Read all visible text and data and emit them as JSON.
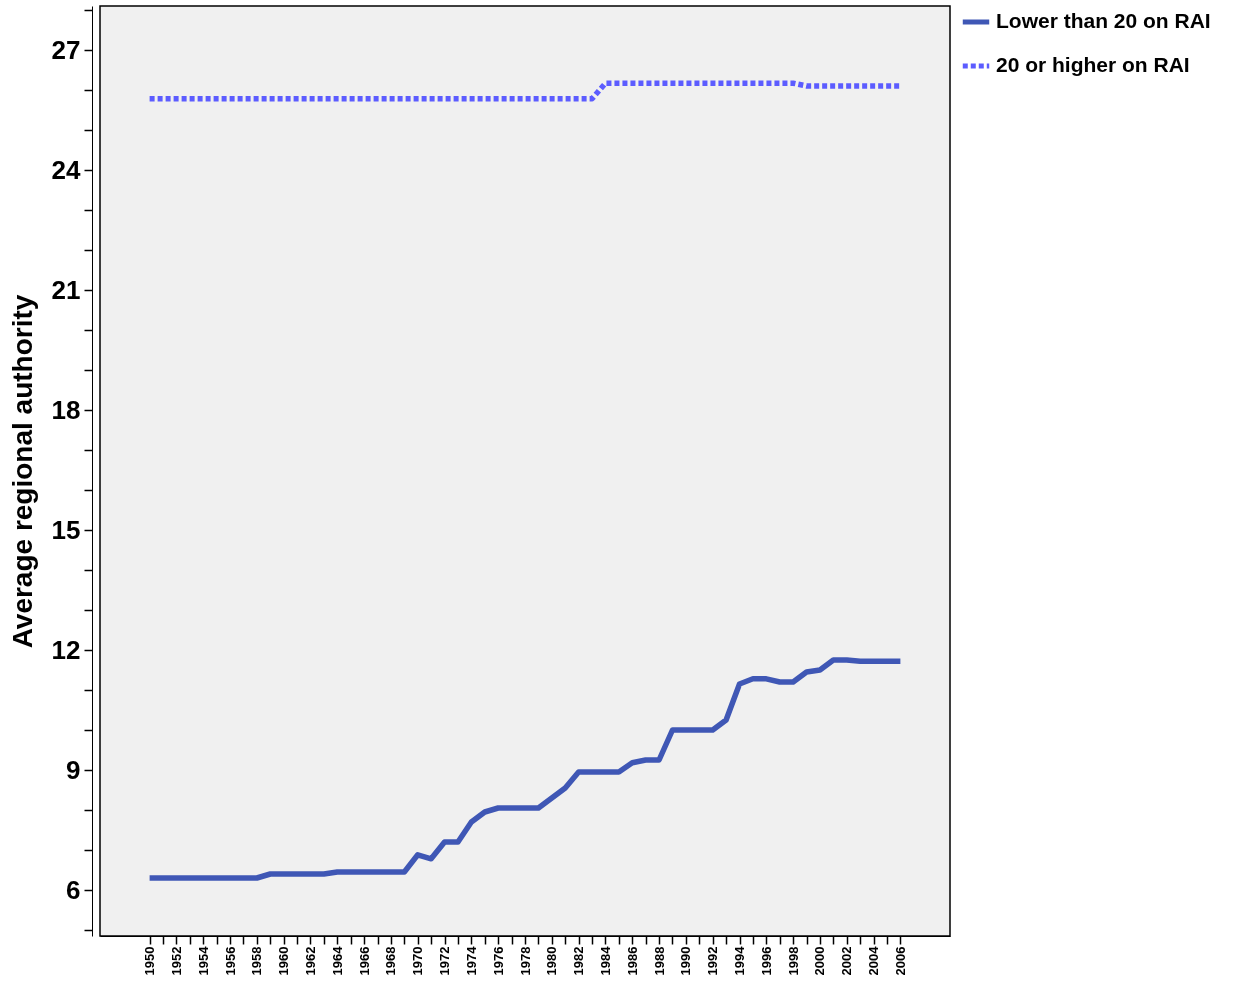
{
  "chart_data": {
    "type": "line",
    "ylabel": "Average regional authority",
    "x": [
      1950,
      1951,
      1952,
      1953,
      1954,
      1955,
      1956,
      1957,
      1958,
      1959,
      1960,
      1961,
      1962,
      1963,
      1964,
      1965,
      1966,
      1967,
      1968,
      1969,
      1970,
      1971,
      1972,
      1973,
      1974,
      1975,
      1976,
      1977,
      1978,
      1979,
      1980,
      1981,
      1982,
      1983,
      1984,
      1985,
      1986,
      1987,
      1988,
      1989,
      1990,
      1991,
      1992,
      1993,
      1994,
      1995,
      1996,
      1997,
      1998,
      1999,
      2000,
      2001,
      2002,
      2003,
      2004,
      2005,
      2006
    ],
    "series": [
      {
        "name": "Lower than 20 on RAI",
        "color": "#3f57b5",
        "line_style": "solid",
        "values": [
          6.3,
          6.3,
          6.3,
          6.3,
          6.3,
          6.3,
          6.3,
          6.3,
          6.3,
          6.4,
          6.4,
          6.4,
          6.4,
          6.4,
          6.45,
          6.45,
          6.45,
          6.45,
          6.45,
          6.45,
          6.88,
          6.78,
          7.2,
          7.2,
          7.7,
          7.95,
          8.05,
          8.05,
          8.05,
          8.05,
          8.3,
          8.55,
          8.95,
          8.95,
          8.95,
          8.95,
          9.18,
          9.25,
          9.25,
          10.0,
          10.0,
          10.0,
          10.0,
          10.25,
          11.15,
          11.28,
          11.28,
          11.2,
          11.2,
          11.45,
          11.5,
          11.75,
          11.75,
          11.72,
          11.72,
          11.72,
          11.72
        ]
      },
      {
        "name": "20 or higher on RAI",
        "color": "#5c5cff",
        "line_style": "dotted",
        "values": [
          25.78,
          25.78,
          25.78,
          25.78,
          25.78,
          25.78,
          25.78,
          25.78,
          25.78,
          25.78,
          25.78,
          25.78,
          25.78,
          25.78,
          25.78,
          25.78,
          25.78,
          25.78,
          25.78,
          25.78,
          25.78,
          25.78,
          25.78,
          25.78,
          25.78,
          25.78,
          25.78,
          25.78,
          25.78,
          25.78,
          25.78,
          25.78,
          25.78,
          25.78,
          26.17,
          26.17,
          26.17,
          26.17,
          26.17,
          26.17,
          26.17,
          26.17,
          26.17,
          26.17,
          26.17,
          26.17,
          26.17,
          26.17,
          26.17,
          26.1,
          26.1,
          26.1,
          26.1,
          26.1,
          26.1,
          26.1,
          26.1
        ]
      }
    ],
    "xlim": [
      1946.3,
      2009.7
    ],
    "xticks": [
      1950,
      {
        "value": 1951,
        "label": null
      },
      1952,
      {
        "value": 1953,
        "label": null
      },
      1954,
      {
        "value": 1955,
        "label": null
      },
      1956,
      {
        "value": 1957,
        "label": null
      },
      1958,
      {
        "value": 1959,
        "label": null
      },
      1960,
      {
        "value": 1961,
        "label": null
      },
      1962,
      {
        "value": 1963,
        "label": null
      },
      1964,
      {
        "value": 1965,
        "label": null
      },
      1966,
      {
        "value": 1967,
        "label": null
      },
      1968,
      {
        "value": 1969,
        "label": null
      },
      1970,
      {
        "value": 1971,
        "label": null
      },
      1972,
      {
        "value": 1973,
        "label": null
      },
      1974,
      {
        "value": 1975,
        "label": null
      },
      1976,
      {
        "value": 1977,
        "label": null
      },
      1978,
      {
        "value": 1979,
        "label": null
      },
      1980,
      {
        "value": 1981,
        "label": null
      },
      1982,
      {
        "value": 1983,
        "label": null
      },
      1984,
      {
        "value": 1985,
        "label": null
      },
      1986,
      {
        "value": 1987,
        "label": null
      },
      1988,
      {
        "value": 1989,
        "label": null
      },
      1990,
      {
        "value": 1991,
        "label": null
      },
      1992,
      {
        "value": 1993,
        "label": null
      },
      1994,
      {
        "value": 1995,
        "label": null
      },
      1996,
      {
        "value": 1997,
        "label": null
      },
      1998,
      {
        "value": 1999,
        "label": null
      },
      2000,
      {
        "value": 2001,
        "label": null
      },
      2002,
      {
        "value": 2003,
        "label": null
      },
      2004,
      {
        "value": 2005,
        "label": null
      },
      2006
    ],
    "ylim": [
      4.85,
      28.1
    ],
    "yticks": [
      {
        "value": 5,
        "label": null
      },
      6,
      {
        "value": 7,
        "label": null
      },
      {
        "value": 8,
        "label": null
      },
      9,
      {
        "value": 10,
        "label": null
      },
      {
        "value": 11,
        "label": null
      },
      12,
      {
        "value": 13,
        "label": null
      },
      {
        "value": 14,
        "label": null
      },
      15,
      {
        "value": 16,
        "label": null
      },
      {
        "value": 17,
        "label": null
      },
      18,
      {
        "value": 19,
        "label": null
      },
      {
        "value": 20,
        "label": null
      },
      21,
      {
        "value": 22,
        "label": null
      },
      {
        "value": 23,
        "label": null
      },
      24,
      {
        "value": 25,
        "label": null
      },
      {
        "value": 26,
        "label": null
      },
      27,
      {
        "value": 28,
        "label": null
      }
    ],
    "grid": false,
    "legend": "top right",
    "marker": "none"
  }
}
